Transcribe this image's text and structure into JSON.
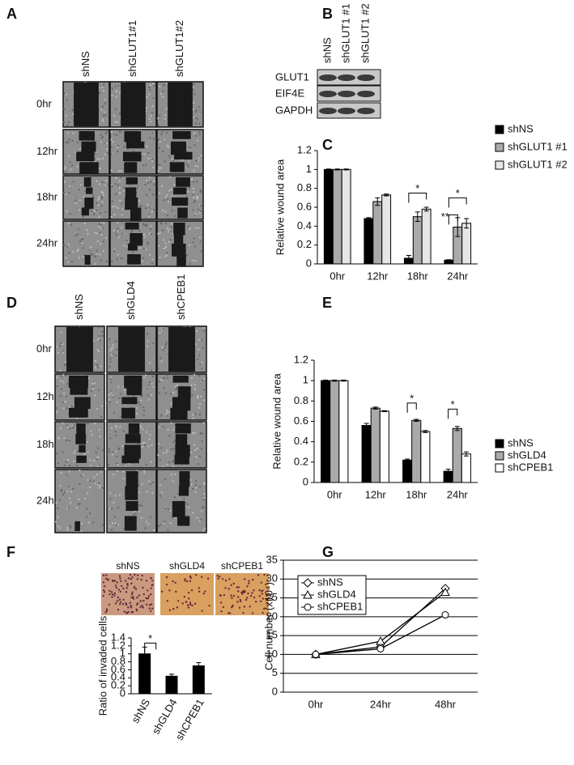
{
  "panel_labels": [
    "A",
    "B",
    "C",
    "D",
    "E",
    "F",
    "G"
  ],
  "image_panels": [
    {
      "columns": [
        "shNS",
        "shGLUT1#1",
        "shGLUT1#2"
      ],
      "rows": [
        "0hr",
        "12hr",
        "18hr",
        "24hr"
      ]
    },
    {
      "columns": [
        "shNS",
        "shGLD4",
        "shCPEB1"
      ],
      "rows": [
        "0hr",
        "12hr",
        "18hr",
        "24hr"
      ]
    },
    {
      "columns": [
        "shNS",
        "shGLD4",
        "shCPEB1"
      ]
    }
  ],
  "blot": {
    "columns": [
      "shNS",
      "shGLUT1 #1",
      "shGLUT1 #2"
    ],
    "rows": [
      "GLUT1",
      "EIF4E",
      "GAPDH"
    ]
  },
  "chart_data": [
    {
      "type": "bar",
      "y_label": "Relative wound area",
      "categories": [
        "0hr",
        "12hr",
        "18hr",
        "24hr"
      ],
      "series": [
        {
          "name": "shNS",
          "color": "#000000",
          "values": [
            1,
            0.48,
            0.06,
            0.04
          ],
          "errors": [
            0.005,
            0.01,
            0.03,
            0.005
          ]
        },
        {
          "name": "shGLUT1 #1",
          "color": "#aaaaaa",
          "values": [
            1,
            0.66,
            0.5,
            0.39
          ],
          "errors": [
            0.005,
            0.04,
            0.05,
            0.1
          ]
        },
        {
          "name": "shGLUT1 #2",
          "color": "#e6e6e6",
          "values": [
            1,
            0.73,
            0.58,
            0.43
          ],
          "errors": [
            0.005,
            0.01,
            0.02,
            0.05
          ]
        }
      ],
      "ylim": [
        0,
        1.2
      ],
      "yticks": [
        0,
        0.2,
        0.4,
        0.6,
        0.8,
        1,
        1.2
      ],
      "annotations": [
        "*",
        "*",
        "**"
      ]
    },
    {
      "type": "bar",
      "y_label": "Relative wound area",
      "categories": [
        "0hr",
        "12hr",
        "18hr",
        "24hr"
      ],
      "series": [
        {
          "name": "shNS",
          "color": "#000000",
          "values": [
            1,
            0.56,
            0.22,
            0.11
          ],
          "errors": [
            0.005,
            0.02,
            0.01,
            0.02
          ]
        },
        {
          "name": "shGLD4",
          "color": "#aaaaaa",
          "values": [
            1,
            0.73,
            0.61,
            0.53
          ],
          "errors": [
            0.005,
            0.01,
            0.01,
            0.02
          ]
        },
        {
          "name": "shCPEB1",
          "color": "#ffffff",
          "values": [
            1,
            0.7,
            0.5,
            0.28
          ],
          "errors": [
            0.005,
            0.005,
            0.01,
            0.02
          ]
        }
      ],
      "ylim": [
        0,
        1.2
      ],
      "yticks": [
        0,
        0.2,
        0.4,
        0.6,
        0.8,
        1,
        1.2
      ],
      "annotations": [
        "*",
        "*"
      ]
    },
    {
      "type": "bar",
      "y_label": "Ratio of invaded cells",
      "categories": [
        "shNS",
        "shGLD4",
        "shCPEB1"
      ],
      "values": [
        1,
        0.44,
        0.7
      ],
      "errors": [
        0.17,
        0.05,
        0.08
      ],
      "color": "#000000",
      "ylim": [
        0,
        1.4
      ],
      "yticks": [
        0,
        0.2,
        0.4,
        0.6,
        0.8,
        1,
        1.2,
        1.4
      ],
      "annotations": [
        "*"
      ]
    },
    {
      "type": "line",
      "y_label": "Cell number (x10⁴)",
      "categories": [
        "0hr",
        "24hr",
        "48hr"
      ],
      "series": [
        {
          "name": "shNS",
          "marker": "diamond",
          "color": "#000000",
          "values": [
            10,
            12,
            27.5
          ]
        },
        {
          "name": "shGLD4",
          "marker": "triangle",
          "color": "#000000",
          "values": [
            10,
            13.5,
            26.5
          ]
        },
        {
          "name": "shCPEB1",
          "marker": "circle",
          "color": "#000000",
          "values": [
            10,
            11.5,
            20.5
          ]
        }
      ],
      "ylim": [
        0,
        35
      ],
      "yticks": [
        0,
        5,
        10,
        15,
        20,
        25,
        30,
        35
      ],
      "grid": true
    }
  ]
}
